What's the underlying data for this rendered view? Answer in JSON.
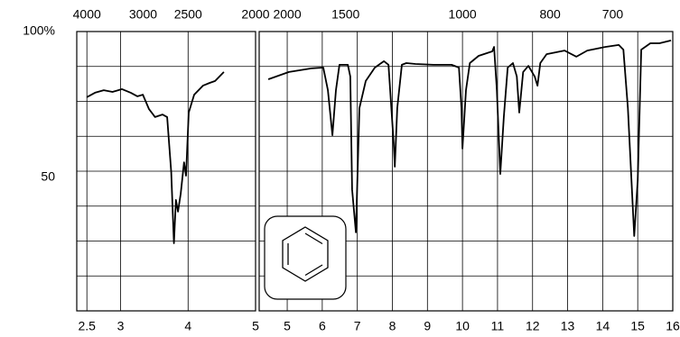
{
  "chart_data": [
    {
      "type": "line",
      "color": "#000000",
      "xlim": [
        2.35,
        5
      ],
      "ylim": [
        0,
        100
      ],
      "xticks": [
        2.5,
        3,
        4,
        5
      ],
      "x2ticks": [
        4000,
        3000,
        2500,
        2000
      ],
      "yticks": [
        {
          "value": 100,
          "label": "100%"
        },
        50
      ],
      "ygrid": [
        0,
        12.5,
        25,
        37.5,
        50,
        62.5,
        75,
        87.5,
        100
      ],
      "x": [
        2.5,
        2.62,
        2.75,
        2.88,
        3.02,
        3.15,
        3.25,
        3.33,
        3.42,
        3.51,
        3.62,
        3.69,
        3.75,
        3.79,
        3.82,
        3.85,
        3.89,
        3.94,
        3.97,
        4.01,
        4.09,
        4.22,
        4.32,
        4.4,
        4.53
      ],
      "values": [
        76.5,
        78.1,
        79.0,
        78.4,
        79.4,
        78.1,
        76.8,
        77.4,
        72.3,
        69.4,
        70.3,
        69.4,
        49.7,
        24.2,
        39.7,
        35.5,
        41.9,
        53.2,
        48.4,
        71.0,
        77.4,
        80.6,
        81.6,
        82.3,
        85.5
      ]
    },
    {
      "type": "line",
      "color": "#000000",
      "xlim": [
        4.2,
        16
      ],
      "ylim": [
        0,
        100
      ],
      "xticks": [
        5,
        6,
        7,
        8,
        9,
        10,
        11,
        12,
        13,
        14,
        15,
        16
      ],
      "x2ticks": [
        2000,
        1500,
        1000,
        800,
        700
      ],
      "ygrid": [
        0,
        12.5,
        25,
        37.5,
        50,
        62.5,
        75,
        87.5,
        100
      ],
      "x": [
        4.46,
        5.05,
        5.69,
        6.03,
        6.16,
        6.29,
        6.39,
        6.49,
        6.73,
        6.8,
        6.85,
        6.96,
        7.06,
        7.24,
        7.5,
        7.76,
        7.89,
        8.04,
        8.07,
        8.14,
        8.27,
        8.4,
        8.66,
        9.17,
        9.69,
        9.9,
        9.97,
        10.0,
        10.1,
        10.21,
        10.46,
        10.85,
        10.9,
        10.98,
        11.08,
        11.18,
        11.29,
        11.44,
        11.55,
        11.62,
        11.73,
        11.88,
        12.06,
        12.14,
        12.22,
        12.4,
        12.91,
        13.25,
        13.56,
        14.07,
        14.46,
        14.59,
        14.72,
        14.9,
        15.0,
        15.1,
        15.36,
        15.62,
        15.95
      ],
      "values": [
        82.9,
        85.5,
        86.8,
        87.1,
        79.0,
        62.9,
        79.0,
        88.1,
        88.1,
        83.9,
        43.5,
        28.1,
        72.6,
        82.3,
        87.1,
        89.4,
        88.1,
        59.7,
        51.6,
        72.6,
        88.1,
        88.7,
        88.4,
        88.1,
        88.1,
        87.1,
        72.6,
        58.1,
        79.0,
        88.7,
        91.3,
        92.9,
        94.5,
        79.0,
        49.0,
        69.4,
        87.1,
        88.7,
        83.9,
        71.0,
        85.5,
        87.7,
        83.9,
        80.6,
        88.7,
        91.9,
        93.2,
        91.0,
        93.2,
        94.5,
        95.2,
        93.5,
        72.6,
        26.8,
        46.8,
        93.5,
        95.8,
        95.8,
        96.8
      ]
    }
  ]
}
